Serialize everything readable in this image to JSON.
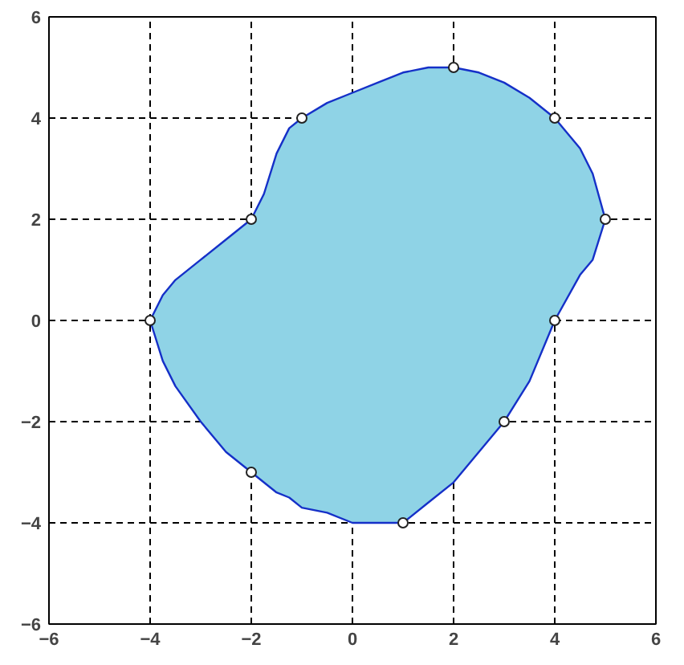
{
  "chart_data": {
    "type": "area",
    "series": [
      {
        "color": "#8fd3e6",
        "x": [
          -4,
          -3.75,
          -3.5,
          -3,
          -2.5,
          -2,
          -1.75,
          -1.5,
          -1.25,
          -1,
          -0.5,
          0,
          0.5,
          1,
          1.5,
          2,
          2.5,
          3,
          3.5,
          4,
          4.5,
          4.75,
          5,
          4.75,
          4.5,
          4,
          3.5,
          3,
          2.5,
          2,
          1.5,
          1,
          0.5,
          0,
          -0.5,
          -1,
          -1.25,
          -1.5,
          -2,
          -2.5,
          -3,
          -3.5,
          -3.75
        ],
        "values": [
          0,
          0.5,
          0.8,
          1.2,
          1.6,
          2,
          2.5,
          3.3,
          3.8,
          4,
          4.3,
          4.5,
          4.7,
          4.9,
          5,
          5,
          4.9,
          4.7,
          4.4,
          4,
          3.4,
          2.9,
          2,
          1.2,
          0.9,
          0,
          -1.2,
          -2,
          -2.6,
          -3.2,
          -3.6,
          -4,
          -4,
          -4,
          -3.8,
          -3.7,
          -3.5,
          -3.4,
          -3,
          -2.6,
          -2,
          -1.3,
          -0.8
        ],
        "line_style": "solid"
      },
      {
        "type": "scatter",
        "color": "#ffffff",
        "x": [
          -4,
          -2,
          -1,
          2,
          4,
          5,
          4,
          3,
          1,
          -2
        ],
        "values": [
          0,
          2,
          4,
          5,
          4,
          2,
          0,
          -2,
          -4,
          -3
        ],
        "marker": "circle"
      }
    ],
    "xlim": [
      -6,
      6
    ],
    "ylim": [
      -6,
      6
    ],
    "xticks": [
      -6,
      -4,
      -2,
      0,
      2,
      4,
      6
    ],
    "yticks": [
      -6,
      -4,
      -2,
      0,
      2,
      4,
      6
    ],
    "grid": true
  }
}
